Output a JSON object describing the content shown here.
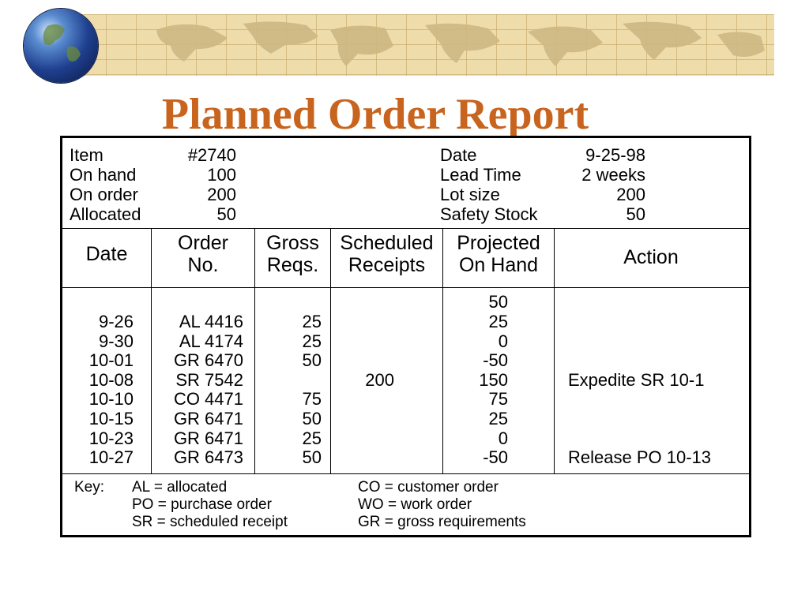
{
  "title": "Planned Order Report",
  "header": {
    "left": [
      {
        "label": "Item",
        "value": "#2740"
      },
      {
        "label": "On hand",
        "value": "100"
      },
      {
        "label": "On order",
        "value": "200"
      },
      {
        "label": "Allocated",
        "value": "50"
      }
    ],
    "right": [
      {
        "label": "Date",
        "value": "9-25-98"
      },
      {
        "label": "Lead Time",
        "value": "2 weeks"
      },
      {
        "label": "Lot size",
        "value": "200"
      },
      {
        "label": "Safety Stock",
        "value": "50"
      }
    ]
  },
  "columns": [
    {
      "line1": "Date",
      "line2": ""
    },
    {
      "line1": "Order",
      "line2": "No."
    },
    {
      "line1": "Gross",
      "line2": "Reqs."
    },
    {
      "line1": "Scheduled",
      "line2": "Receipts"
    },
    {
      "line1": "Projected",
      "line2": "On Hand"
    },
    {
      "line1": "Action",
      "line2": ""
    }
  ],
  "initial_on_hand": "50",
  "rows": [
    {
      "date": "9-26",
      "order": "AL 4416",
      "gross": "25",
      "sched": "",
      "proj": "25",
      "action": ""
    },
    {
      "date": "9-30",
      "order": "AL 4174",
      "gross": "25",
      "sched": "",
      "proj": "0",
      "action": ""
    },
    {
      "date": "10-01",
      "order": "GR 6470",
      "gross": "50",
      "sched": "",
      "proj": "-50",
      "action": ""
    },
    {
      "date": "10-08",
      "order": "SR 7542",
      "gross": "",
      "sched": "200",
      "proj": "150",
      "action": "Expedite SR 10-1"
    },
    {
      "date": "10-10",
      "order": "CO 4471",
      "gross": "75",
      "sched": "",
      "proj": "75",
      "action": ""
    },
    {
      "date": "10-15",
      "order": "GR 6471",
      "gross": "50",
      "sched": "",
      "proj": "25",
      "action": ""
    },
    {
      "date": "10-23",
      "order": "GR 6471",
      "gross": "25",
      "sched": "",
      "proj": "0",
      "action": ""
    },
    {
      "date": "10-27",
      "order": "GR 6473",
      "gross": "50",
      "sched": "",
      "proj": "-50",
      "action": "Release PO 10-13"
    }
  ],
  "key": {
    "label": "Key:",
    "left": [
      "AL = allocated",
      "PO = purchase order",
      "SR = scheduled receipt"
    ],
    "right": [
      "CO = customer order",
      "WO = work order",
      "GR = gross requirements"
    ]
  },
  "colors": {
    "title": "#c8641e",
    "banner": "#efdcab",
    "land": "#cdb884"
  }
}
